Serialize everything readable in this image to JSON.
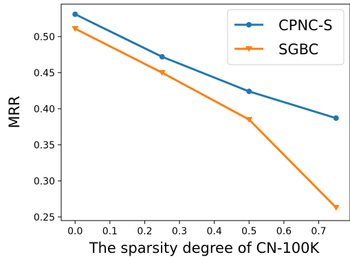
{
  "chart_data": {
    "type": "line",
    "xlabel": "The sparsity degree of CN-100K",
    "ylabel": "MRR",
    "xlim": [
      -0.04,
      0.79
    ],
    "ylim": [
      0.245,
      0.545
    ],
    "xticks": [
      "0.0",
      "0.1",
      "0.2",
      "0.3",
      "0.4",
      "0.5",
      "0.6",
      "0.7"
    ],
    "yticks": [
      "0.25",
      "0.30",
      "0.35",
      "0.40",
      "0.45",
      "0.50"
    ],
    "x": [
      0.0,
      0.25,
      0.5,
      0.75
    ],
    "series": [
      {
        "name": "CPNC-S",
        "color": "#1f77b4",
        "marker": "circle",
        "values": [
          0.531,
          0.472,
          0.424,
          0.387
        ]
      },
      {
        "name": "SGBC",
        "color": "#ff7f0e",
        "marker": "triangle-down",
        "values": [
          0.511,
          0.45,
          0.385,
          0.263
        ]
      }
    ],
    "legend_position": "top-right",
    "grid": false
  }
}
